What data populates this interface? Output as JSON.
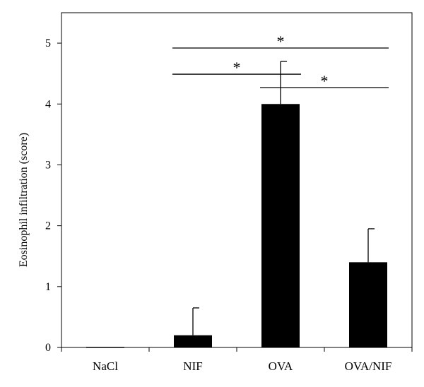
{
  "chart_data": {
    "type": "bar",
    "title": "",
    "xlabel": "",
    "ylabel": "Eosinophil infiltration (score)",
    "ylim": [
      0,
      5.5
    ],
    "yticks": [
      0,
      1,
      2,
      3,
      4,
      5
    ],
    "categories": [
      "NaCl",
      "NIF",
      "OVA",
      "OVA/NIF"
    ],
    "values": [
      0,
      0.2,
      4.0,
      1.4
    ],
    "error_plus": [
      0,
      0.45,
      0.7,
      0.55
    ],
    "grid": false,
    "legend": "none",
    "bar_color": "#000000",
    "significance": [
      {
        "from": 1,
        "to": 3,
        "y": 4.92,
        "label": "*"
      },
      {
        "from": 1,
        "to": 2,
        "y": 4.49,
        "label": "*"
      },
      {
        "from": 2,
        "to": 3,
        "y": 4.27,
        "label": "*"
      }
    ]
  }
}
